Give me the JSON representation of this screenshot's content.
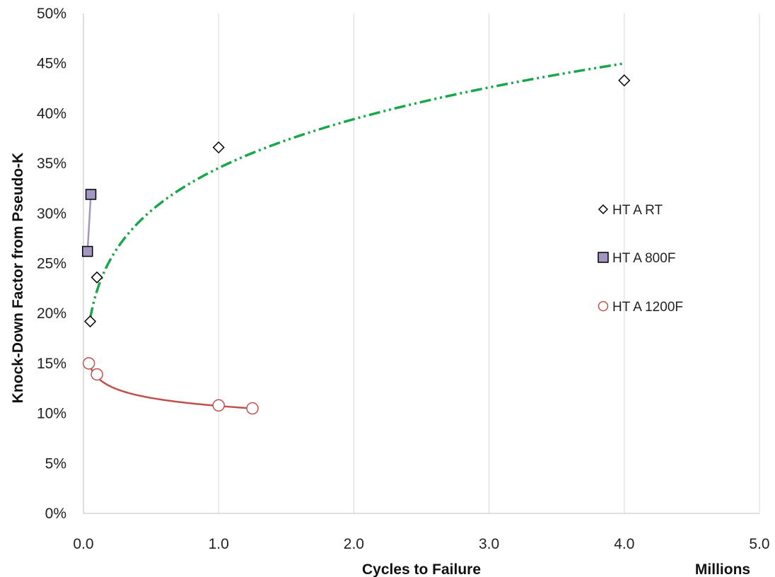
{
  "chart_data": {
    "type": "scatter",
    "xlabel": "Cycles to Failure",
    "x_unit_label": "Millions",
    "ylabel": "Knock-Down Factor from Pseudo-K",
    "xlim": [
      0,
      5
    ],
    "ylim": [
      0,
      0.5
    ],
    "x_ticks": [
      0,
      1,
      2,
      3,
      4,
      5
    ],
    "x_tick_labels": [
      "0.0",
      "1.0",
      "2.0",
      "3.0",
      "4.0",
      "5.0"
    ],
    "y_ticks": [
      0,
      0.05,
      0.1,
      0.15,
      0.2,
      0.25,
      0.3,
      0.35,
      0.4,
      0.45,
      0.5
    ],
    "y_tick_labels": [
      "0%",
      "5%",
      "10%",
      "15%",
      "20%",
      "25%",
      "30%",
      "35%",
      "40%",
      "45%",
      "50%"
    ],
    "grid": "vertical",
    "legend_position": "right",
    "series": [
      {
        "name": "HT A RT",
        "marker": "diamond",
        "color": "#000000",
        "fill": "#ffffff",
        "x": [
          0.05,
          0.1,
          1.0,
          4.0
        ],
        "y": [
          0.192,
          0.236,
          0.366,
          0.433
        ],
        "trend": {
          "type": "power",
          "x_range": [
            0.05,
            4.0
          ],
          "y_range": [
            0.195,
            0.45
          ],
          "color": "#1aa64a",
          "style": "dash-dot-dot"
        }
      },
      {
        "name": "HT A 800F",
        "marker": "square",
        "color": "#000000",
        "fill": "#a396c0",
        "x": [
          0.03,
          0.055
        ],
        "y": [
          0.262,
          0.319
        ],
        "trend": {
          "type": "line",
          "color": "#a396c0",
          "style": "solid"
        }
      },
      {
        "name": "HT A 1200F",
        "marker": "circle",
        "color": "#c0504d",
        "fill": "#ffffff",
        "x": [
          0.04,
          0.1,
          1.0,
          1.25
        ],
        "y": [
          0.15,
          0.139,
          0.108,
          0.105
        ],
        "trend": {
          "type": "power",
          "x_range": [
            0.04,
            1.25
          ],
          "y_range": [
            0.15,
            0.105
          ],
          "color": "#c0504d",
          "style": "solid"
        }
      }
    ]
  }
}
